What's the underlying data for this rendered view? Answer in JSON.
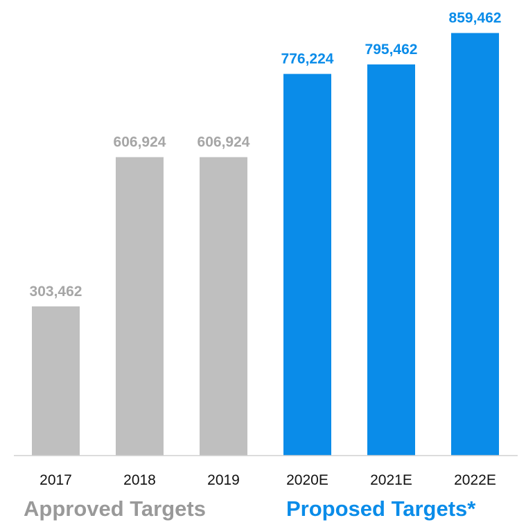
{
  "chart_data": {
    "type": "bar",
    "categories": [
      "2017",
      "2018",
      "2019",
      "2020E",
      "2021E",
      "2022E"
    ],
    "values": [
      303462,
      606924,
      606924,
      776224,
      795462,
      859462
    ],
    "value_labels": [
      "303,462",
      "606,924",
      "606,924",
      "776,224",
      "795,462",
      "859,462"
    ],
    "groups": [
      {
        "label": "Approved Targets",
        "color": "#999999",
        "bar_color": "#bfbfbf",
        "categories": [
          "2017",
          "2018",
          "2019"
        ]
      },
      {
        "label": "Proposed Targets*",
        "color": "#0a8ce9",
        "bar_color": "#0a8ce9",
        "categories": [
          "2020E",
          "2021E",
          "2022E"
        ]
      }
    ],
    "ylim": [
      0,
      880000
    ],
    "grid": false,
    "legend": "none"
  }
}
